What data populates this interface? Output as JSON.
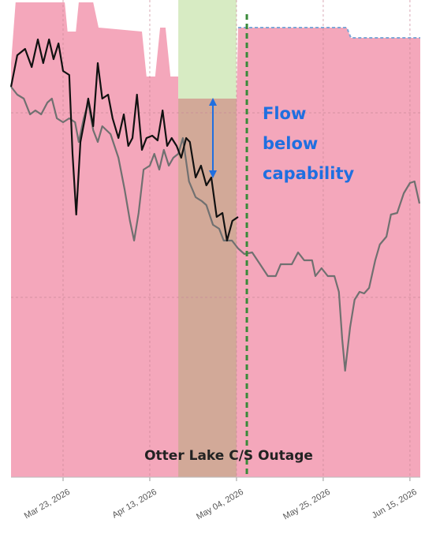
{
  "chart_data": {
    "type": "line",
    "xlim": [
      69.4,
      168.5
    ],
    "ylim": [
      0,
      605
    ],
    "xticks": [
      {
        "value": 82,
        "label": "Mar 23, 2026"
      },
      {
        "value": 103,
        "label": "Apr 13, 2026"
      },
      {
        "value": 124,
        "label": "May 04, 2026"
      },
      {
        "value": 145,
        "label": "May 25, 2026"
      },
      {
        "value": 166,
        "label": "Jun 15, 2026"
      }
    ],
    "yticks": [
      228,
      462
    ],
    "grid": true,
    "capability": {
      "color": "#f4a7bb",
      "line_color": "#7fa6d6",
      "x": [
        69.4,
        70.5,
        82.4,
        83.1,
        85.1,
        85.8,
        89.3,
        90.6,
        101.1,
        102.2,
        104.3,
        105.5,
        106.8,
        108,
        109.9,
        109.9,
        124,
        124.4,
        150.7,
        151.7,
        168.5
      ],
      "values": [
        525,
        602,
        602,
        565,
        565,
        602,
        602,
        570,
        565,
        508,
        508,
        570,
        570,
        508,
        508,
        480,
        480,
        570,
        570,
        557,
        557
      ]
    },
    "outage": {
      "label": "Otter Lake C/S Outage",
      "start": 109.9,
      "end": 124,
      "color": "#d2a998",
      "window_color": "#d7ebc3"
    },
    "today": {
      "x": 126.5,
      "color": "#3a8a3a"
    },
    "annotation": {
      "lines": [
        "Flow",
        "below",
        "capability"
      ],
      "color": "#1f6fe0"
    },
    "series": [
      {
        "color": "#707070",
        "x": [
          69.4,
          70.9,
          72.5,
          74,
          75.3,
          76.7,
          78.2,
          79.3,
          80.5,
          82,
          83.5,
          84.9,
          85.8,
          87,
          88.1,
          89.3,
          90.4,
          91.5,
          93.5,
          95.4,
          96.9,
          98.2,
          99.2,
          100.3,
          101.5,
          103,
          104.1,
          105.3,
          106.4,
          107.6,
          108.7,
          109.9,
          111,
          112.5,
          114.1,
          115.6,
          116.7,
          118.3,
          119.8,
          120.9,
          122.9,
          124.4,
          125.9,
          127.8,
          129.7,
          131.6,
          133.5,
          134.7,
          137.4,
          138.9,
          140.4,
          142.3,
          143.1,
          144.6,
          146.1,
          147.7,
          148.8,
          149.6,
          150.3,
          151.5,
          152.6,
          153.8,
          154.9,
          156.1,
          157.6,
          158.7,
          160.3,
          161.4,
          162.9,
          164.5,
          166,
          167.1,
          168.3
        ],
        "values": [
          495,
          485,
          480,
          460,
          465,
          460,
          475,
          480,
          455,
          450,
          455,
          450,
          425,
          455,
          475,
          440,
          425,
          445,
          435,
          405,
          365,
          325,
          300,
          335,
          390,
          395,
          410,
          390,
          415,
          395,
          405,
          410,
          430,
          375,
          355,
          350,
          345,
          320,
          315,
          300,
          300,
          290,
          283,
          285,
          270,
          255,
          255,
          270,
          270,
          285,
          275,
          275,
          255,
          265,
          255,
          255,
          235,
          175,
          135,
          190,
          225,
          235,
          233,
          240,
          275,
          295,
          305,
          333,
          335,
          360,
          373,
          375,
          347
        ]
      },
      {
        "color": "#111111",
        "x": [
          69.4,
          70.9,
          72.8,
          74.4,
          75.9,
          77.2,
          78.6,
          79.7,
          80.9,
          82,
          83.5,
          84.3,
          85.2,
          86.2,
          87.3,
          88.1,
          89.3,
          90.4,
          91.5,
          92.9,
          94,
          95.4,
          96.7,
          97.8,
          98.8,
          99.9,
          101.1,
          102.2,
          103.6,
          104.9,
          106.1,
          107.2,
          108.3,
          109.5,
          110.6,
          111.8,
          112.7,
          114.1,
          115.4,
          116.7,
          117.9,
          119.2,
          120.6,
          121.7,
          123,
          124.4
        ],
        "values": [
          495,
          535,
          543,
          520,
          555,
          525,
          555,
          530,
          550,
          515,
          510,
          410,
          333,
          425,
          455,
          480,
          445,
          525,
          480,
          485,
          455,
          430,
          460,
          420,
          430,
          485,
          415,
          430,
          433,
          427,
          465,
          420,
          430,
          420,
          405,
          430,
          425,
          380,
          395,
          370,
          380,
          330,
          335,
          300,
          325,
          330
        ]
      }
    ]
  }
}
